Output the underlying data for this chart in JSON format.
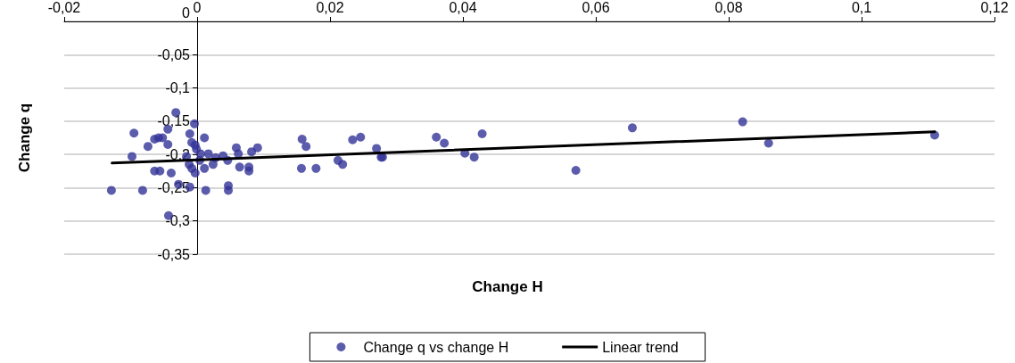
{
  "chart_data": {
    "type": "scatter",
    "xlabel": "Change H",
    "ylabel": "Change q",
    "xlim": [
      -0.02,
      0.12
    ],
    "ylim": [
      -0.35,
      0
    ],
    "xticks": [
      {
        "value": -0.02,
        "label": "-0,02"
      },
      0,
      {
        "value": 0.02,
        "label": "0,02"
      },
      {
        "value": 0.04,
        "label": "0,04"
      },
      {
        "value": 0.06,
        "label": "0,06"
      },
      {
        "value": 0.08,
        "label": "0,08"
      },
      {
        "value": 0.1,
        "label": "0,1"
      },
      {
        "value": 0.12,
        "label": "0,12"
      }
    ],
    "yticks": [
      {
        "value": -0.35,
        "label": "-0,35"
      },
      {
        "value": -0.3,
        "label": "-0,3"
      },
      {
        "value": -0.25,
        "label": "-0,25"
      },
      {
        "value": -0.2,
        "label": "-0,2"
      },
      {
        "value": -0.15,
        "label": "-0,15"
      },
      {
        "value": -0.1,
        "label": "-0,1"
      },
      {
        "value": -0.05,
        "label": "-0,05"
      },
      0
    ],
    "grid": "y",
    "legend": "bottom",
    "marker": "circle",
    "series": [
      {
        "name": "Change q vs change H",
        "type": "scatter",
        "color": "#333399",
        "x": [
          -0.0129,
          -0.0095,
          -0.0098,
          -0.0082,
          -0.0074,
          -0.0064,
          -0.0058,
          -0.0052,
          -0.0044,
          -0.0032,
          -0.0044,
          -0.0064,
          -0.0056,
          -0.0039,
          -0.0028,
          -0.0043,
          -0.0011,
          -0.0004,
          -0.0008,
          0.0011,
          -0.0003,
          -0.0001,
          -0.0016,
          -0.0012,
          -0.0008,
          -0.0003,
          -0.0011,
          0.0013,
          0.0005,
          0.0017,
          0.0004,
          0.0011,
          0.0024,
          0.0028,
          0.0039,
          0.0046,
          0.0059,
          0.0062,
          0.0064,
          0.0078,
          0.0078,
          0.0047,
          0.0047,
          0.0082,
          0.0091,
          0.0158,
          0.0164,
          0.0157,
          0.0179,
          0.0212,
          0.0219,
          0.0234,
          0.0246,
          0.027,
          0.0277,
          0.0279,
          0.036,
          0.0372,
          0.0403,
          0.0417,
          0.0429,
          0.057,
          0.0655,
          0.0821,
          0.086,
          0.111
        ],
        "values": [
          -0.254,
          -0.168,
          -0.203,
          -0.254,
          -0.188,
          -0.177,
          -0.175,
          -0.175,
          -0.162,
          -0.137,
          -0.185,
          -0.225,
          -0.225,
          -0.228,
          -0.245,
          -0.292,
          -0.169,
          -0.154,
          -0.182,
          -0.175,
          -0.186,
          -0.192,
          -0.203,
          -0.215,
          -0.221,
          -0.228,
          -0.249,
          -0.254,
          -0.199,
          -0.199,
          -0.209,
          -0.221,
          -0.215,
          -0.205,
          -0.202,
          -0.209,
          -0.19,
          -0.199,
          -0.219,
          -0.219,
          -0.225,
          -0.247,
          -0.254,
          -0.196,
          -0.19,
          -0.177,
          -0.188,
          -0.221,
          -0.221,
          -0.209,
          -0.215,
          -0.178,
          -0.174,
          -0.191,
          -0.204,
          -0.204,
          -0.174,
          -0.183,
          -0.198,
          -0.204,
          -0.169,
          -0.224,
          -0.16,
          -0.151,
          -0.183,
          -0.171
        ]
      },
      {
        "name": "Linear trend",
        "type": "line",
        "color": "#000000",
        "marker": "none",
        "line_style": "solid",
        "x": [
          -0.0128,
          0.111
        ],
        "values": [
          -0.213,
          -0.166
        ]
      }
    ]
  }
}
